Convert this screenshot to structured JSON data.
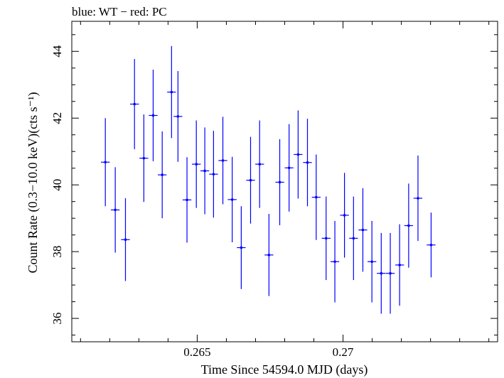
{
  "chart_data": {
    "type": "scatter",
    "title": "blue: WT − red: PC",
    "xlabel": "Time Since 54594.0 MJD (days)",
    "ylabel": "Count Rate (0.3−10.0 keV)(cts s⁻¹)",
    "xlim": [
      0.2607,
      0.2753
    ],
    "ylim": [
      35.3,
      44.9
    ],
    "xticks": [
      0.265,
      0.27
    ],
    "xtick_labels": [
      "0.265",
      "0.27"
    ],
    "yticks": [
      36,
      38,
      40,
      42,
      44
    ],
    "ytick_labels": [
      "36",
      "38",
      "40",
      "42",
      "44"
    ],
    "grid": false,
    "series": [
      {
        "color": "#0000ff",
        "x_halfwidth": 0.00015,
        "points": [
          {
            "x": 0.26185,
            "y": 40.68,
            "err": 1.32
          },
          {
            "x": 0.26219,
            "y": 39.25,
            "err": 1.28
          },
          {
            "x": 0.26254,
            "y": 38.36,
            "err": 1.24
          },
          {
            "x": 0.26285,
            "y": 42.42,
            "err": 1.35
          },
          {
            "x": 0.26317,
            "y": 40.8,
            "err": 1.31
          },
          {
            "x": 0.26349,
            "y": 42.08,
            "err": 1.37
          },
          {
            "x": 0.2638,
            "y": 40.3,
            "err": 1.3
          },
          {
            "x": 0.26412,
            "y": 42.78,
            "err": 1.38
          },
          {
            "x": 0.26434,
            "y": 42.05,
            "err": 1.36
          },
          {
            "x": 0.26465,
            "y": 39.55,
            "err": 1.28
          },
          {
            "x": 0.26497,
            "y": 40.62,
            "err": 1.31
          },
          {
            "x": 0.26526,
            "y": 40.42,
            "err": 1.3
          },
          {
            "x": 0.26556,
            "y": 40.32,
            "err": 1.3
          },
          {
            "x": 0.26588,
            "y": 40.73,
            "err": 1.31
          },
          {
            "x": 0.2662,
            "y": 39.56,
            "err": 1.28
          },
          {
            "x": 0.26651,
            "y": 38.12,
            "err": 1.24
          },
          {
            "x": 0.26683,
            "y": 40.14,
            "err": 1.3
          },
          {
            "x": 0.26714,
            "y": 40.62,
            "err": 1.31
          },
          {
            "x": 0.26746,
            "y": 37.9,
            "err": 1.23
          },
          {
            "x": 0.26783,
            "y": 40.08,
            "err": 1.29
          },
          {
            "x": 0.26815,
            "y": 40.51,
            "err": 1.31
          },
          {
            "x": 0.26846,
            "y": 40.91,
            "err": 1.32
          },
          {
            "x": 0.26878,
            "y": 40.67,
            "err": 1.31
          },
          {
            "x": 0.26908,
            "y": 39.63,
            "err": 1.28
          },
          {
            "x": 0.26942,
            "y": 38.4,
            "err": 1.25
          },
          {
            "x": 0.26972,
            "y": 37.7,
            "err": 1.22
          },
          {
            "x": 0.27005,
            "y": 39.09,
            "err": 1.27
          },
          {
            "x": 0.27036,
            "y": 38.4,
            "err": 1.25
          },
          {
            "x": 0.27068,
            "y": 38.65,
            "err": 1.25
          },
          {
            "x": 0.27099,
            "y": 37.7,
            "err": 1.22
          },
          {
            "x": 0.27131,
            "y": 37.35,
            "err": 1.21
          },
          {
            "x": 0.27162,
            "y": 37.35,
            "err": 1.21
          },
          {
            "x": 0.27194,
            "y": 37.6,
            "err": 1.22
          },
          {
            "x": 0.27225,
            "y": 38.78,
            "err": 1.26
          },
          {
            "x": 0.27257,
            "y": 39.6,
            "err": 1.28
          },
          {
            "x": 0.27302,
            "y": 38.2,
            "err": 0.97
          }
        ]
      }
    ]
  }
}
